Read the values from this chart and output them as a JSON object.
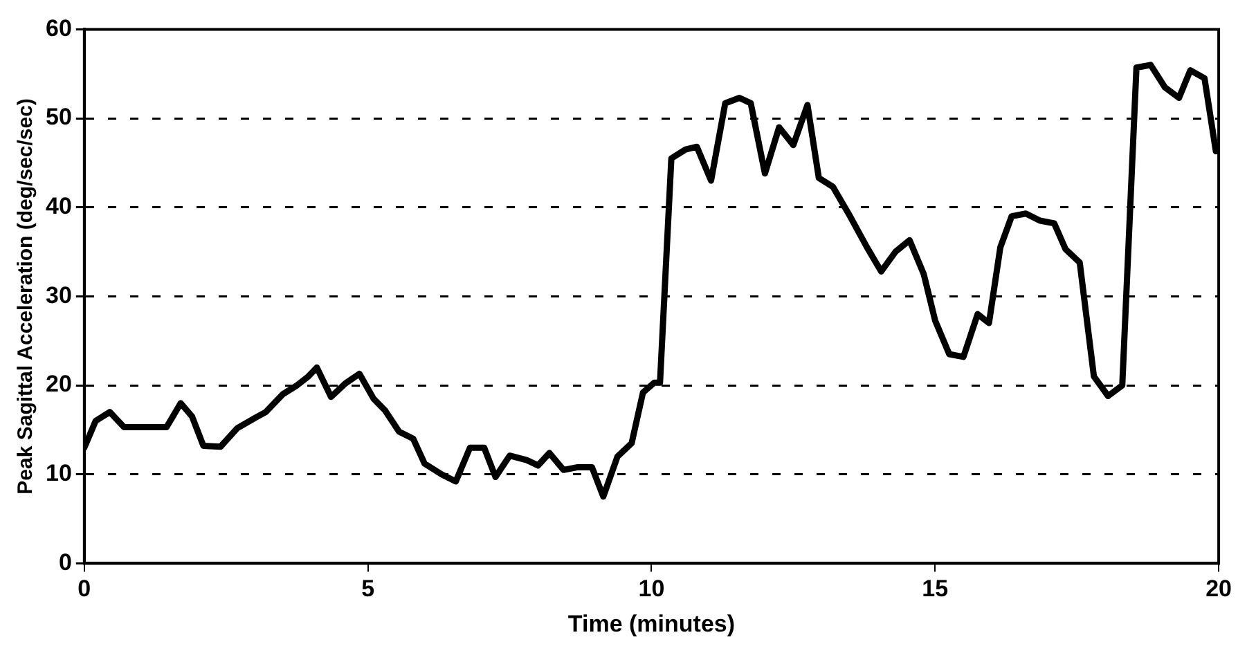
{
  "chart_data": {
    "type": "line",
    "xlabel": "Time (minutes)",
    "ylabel": "Peak Sagittal Acceleration (deg/sec/sec)",
    "xlim": [
      0,
      20
    ],
    "xticks": [
      0,
      5,
      10,
      15,
      20
    ],
    "ylim": [
      0,
      60
    ],
    "yticks": [
      0,
      10,
      20,
      30,
      40,
      50,
      60
    ],
    "grid": "y",
    "legend": false,
    "marker": "none",
    "line_style": "solid",
    "series": [
      {
        "color": "#000000",
        "x": [
          0,
          0.2,
          0.45,
          0.7,
          1.0,
          1.3,
          1.45,
          1.7,
          1.9,
          2.1,
          2.4,
          2.7,
          3.0,
          3.2,
          3.5,
          3.75,
          3.95,
          4.1,
          4.35,
          4.6,
          4.85,
          5.1,
          5.3,
          5.55,
          5.8,
          6.0,
          6.3,
          6.55,
          6.8,
          7.05,
          7.25,
          7.5,
          7.8,
          8.0,
          8.2,
          8.45,
          8.7,
          8.95,
          9.15,
          9.4,
          9.65,
          9.85,
          10.05,
          10.15,
          10.35,
          10.6,
          10.8,
          11.05,
          11.3,
          11.55,
          11.75,
          12.0,
          12.25,
          12.5,
          12.75,
          12.95,
          13.2,
          13.5,
          13.8,
          14.05,
          14.3,
          14.55,
          14.8,
          15.0,
          15.25,
          15.5,
          15.75,
          15.95,
          16.15,
          16.35,
          16.6,
          16.85,
          17.1,
          17.3,
          17.55,
          17.8,
          18.05,
          18.3,
          18.55,
          18.8,
          19.05,
          19.3,
          19.5,
          19.75,
          19.95,
          20
        ],
        "values": [
          13,
          16,
          17,
          15.3,
          15.3,
          15.3,
          15.3,
          18,
          16.5,
          13.2,
          13.1,
          15.2,
          16.3,
          17,
          19,
          20,
          21,
          22,
          18.7,
          20.2,
          21.3,
          18.5,
          17.2,
          14.8,
          14,
          11.2,
          10,
          9.2,
          13,
          13,
          9.7,
          12.1,
          11.6,
          11,
          12.4,
          10.5,
          10.8,
          10.8,
          7.5,
          12,
          13.5,
          19.2,
          20.3,
          20.3,
          45.5,
          46.5,
          46.8,
          43,
          51.7,
          52.3,
          51.7,
          43.8,
          49,
          47,
          51.5,
          43.3,
          42.3,
          39,
          35.5,
          32.8,
          35,
          36.3,
          32.5,
          27.3,
          23.5,
          23.2,
          28,
          27,
          35.5,
          39,
          39.3,
          38.5,
          38.2,
          35.3,
          33.8,
          21,
          18.8,
          20,
          55.7,
          56,
          53.5,
          52.3,
          55.4,
          54.5,
          46.3,
          46.5
        ]
      }
    ]
  }
}
